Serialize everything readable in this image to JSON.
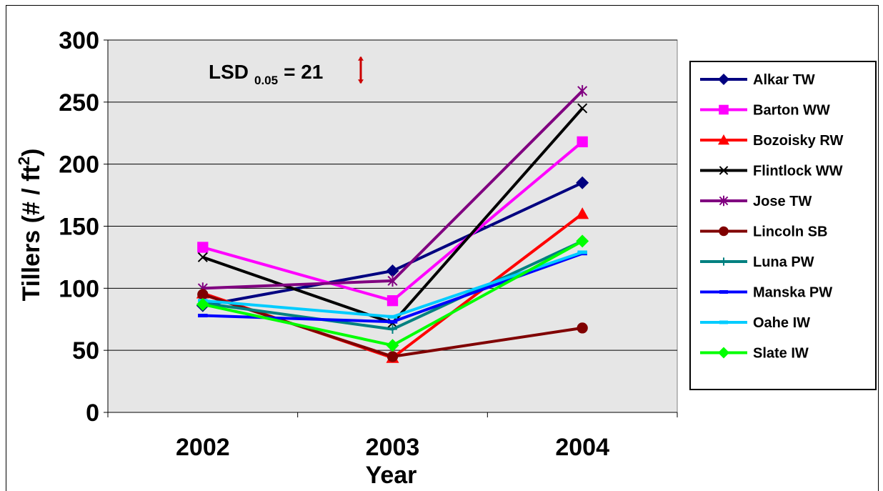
{
  "chart_data": {
    "type": "line",
    "title": "",
    "xlabel": "Year",
    "ylabel": {
      "main": "Tillers (# / ft",
      "sup": "2",
      "tail": ")"
    },
    "categories": [
      "2002",
      "2003",
      "2004"
    ],
    "ylim": [
      0,
      300
    ],
    "yticks": [
      "0",
      "50",
      "100",
      "150",
      "200",
      "250",
      "300"
    ],
    "grid": true,
    "legend_position": "right",
    "annotation": {
      "main": "LSD",
      "sub": "0.05",
      "tail": "= 21",
      "error_bar_value": 21
    },
    "series": [
      {
        "name": "Alkar TW",
        "values": [
          86,
          114,
          185
        ],
        "color": "#000080",
        "marker": "diamond"
      },
      {
        "name": "Barton WW",
        "values": [
          133,
          90,
          218
        ],
        "color": "#FF00FF",
        "marker": "square"
      },
      {
        "name": "Bozoisky RW",
        "values": [
          96,
          44,
          160
        ],
        "color": "#FF0000",
        "marker": "triangle"
      },
      {
        "name": "Flintlock WW",
        "values": [
          125,
          72,
          245
        ],
        "color": "#000000",
        "marker": "x"
      },
      {
        "name": "Jose TW",
        "values": [
          100,
          106,
          259
        ],
        "color": "#800080",
        "marker": "star"
      },
      {
        "name": "Lincoln SB",
        "values": [
          95,
          45,
          68
        ],
        "color": "#800000",
        "marker": "circle"
      },
      {
        "name": "Luna PW",
        "values": [
          88,
          67,
          138
        ],
        "color": "#008080",
        "marker": "plus"
      },
      {
        "name": "Manska PW",
        "values": [
          78,
          73,
          128
        ],
        "color": "#0000FF",
        "marker": "dash"
      },
      {
        "name": "Oahe IW",
        "values": [
          90,
          77,
          129
        ],
        "color": "#00CCFF",
        "marker": "dash"
      },
      {
        "name": "Slate IW",
        "values": [
          87,
          54,
          138
        ],
        "color": "#00FF00",
        "marker": "diamond"
      }
    ]
  }
}
